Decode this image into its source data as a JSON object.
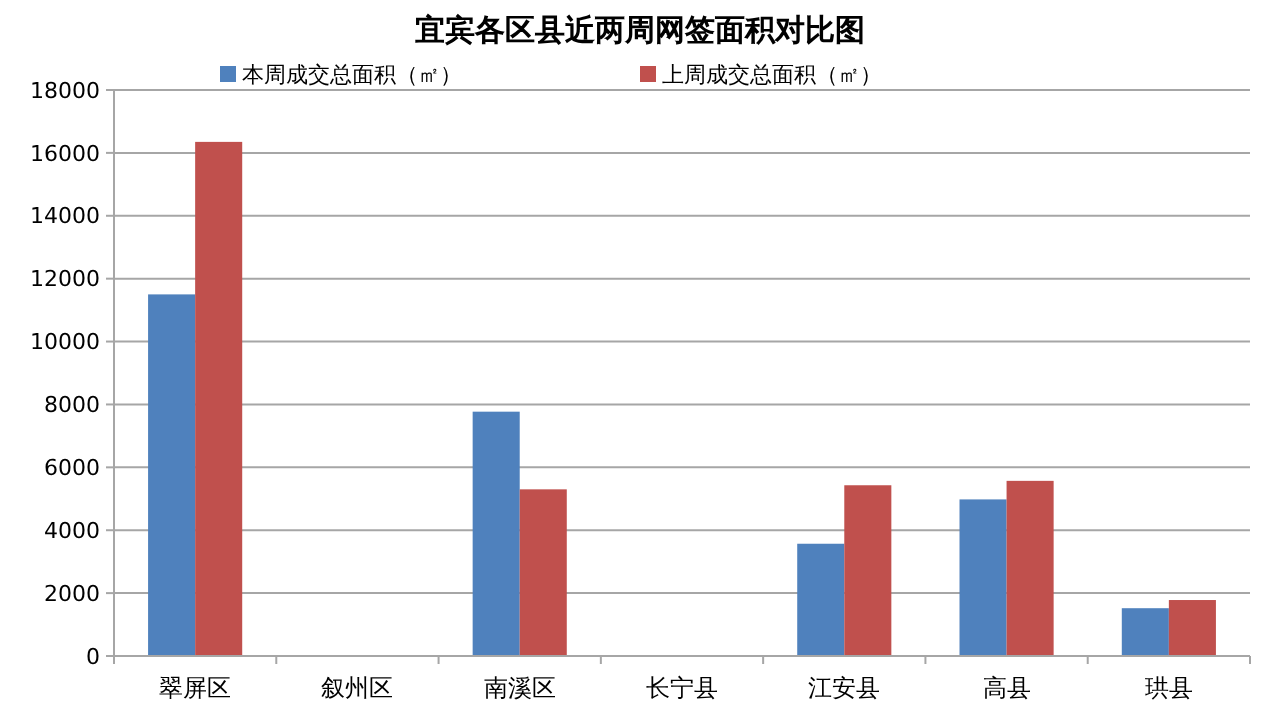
{
  "chart_data": {
    "type": "bar",
    "title": "宜宾各区县近两周网签面积对比图",
    "categories": [
      "翠屏区",
      "叙州区",
      "南溪区",
      "长宁县",
      "江安县",
      "高县",
      "珙县"
    ],
    "series": [
      {
        "name": "本周成交总面积（㎡）",
        "color": "#4f81bd",
        "values": [
          11500,
          null,
          7770,
          null,
          3570,
          4980,
          1520
        ]
      },
      {
        "name": "上周成交总面积（㎡）",
        "color": "#c0504d",
        "values": [
          16350,
          null,
          5300,
          null,
          5430,
          5570,
          1780
        ]
      }
    ],
    "ylim": [
      0,
      18000
    ],
    "yticks": [
      0,
      2000,
      4000,
      6000,
      8000,
      10000,
      12000,
      14000,
      16000,
      18000
    ],
    "grid": "y",
    "legend": "top"
  }
}
